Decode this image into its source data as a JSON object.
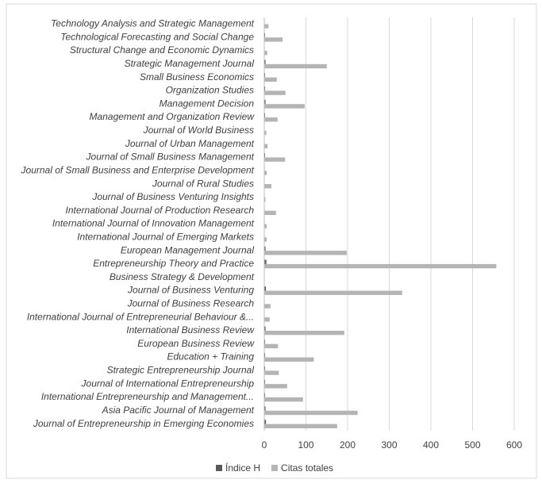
{
  "chart_data": {
    "type": "bar",
    "orientation": "horizontal",
    "categories": [
      "Technology Analysis and Strategic Management",
      "Technological Forecasting and Social Change",
      "Structural Change and Economic Dynamics",
      "Strategic Management Journal",
      "Small Business Economics",
      "Organization Studies",
      "Management Decision",
      "Management and Organization Review",
      "Journal of World Business",
      "Journal of Urban Management",
      "Journal of Small Business Management",
      "Journal of Small Business and Enterprise Development",
      "Journal of Rural Studies",
      "Journal of Business Venturing Insights",
      "International Journal of Production Research",
      "International Journal of Innovation Management",
      "International Journal of Emerging Markets",
      "European Management Journal",
      "Entrepreneurship Theory and Practice",
      "Business Strategy & Development",
      "Journal of Business Venturing",
      "Journal of Business Research",
      "International Journal of Entrepreneurial Behaviour &...",
      "International Business Review",
      "European Business Review",
      "Education + Training",
      "Strategic Entrepreneurship Journal",
      "Journal of International Entrepreneurship",
      "International Entrepreneurship and Management...",
      "Asia Pacific Journal of Management",
      "Journal of Entrepreneurship in Emerging Economies"
    ],
    "series": [
      {
        "name": "Índice H",
        "color": "#595959",
        "values": [
          1,
          2,
          1,
          3,
          2,
          2,
          3,
          2,
          1,
          1,
          2,
          1,
          1,
          1,
          1,
          1,
          1,
          3,
          5,
          1,
          4,
          1,
          1,
          3,
          2,
          2,
          2,
          2,
          2,
          3,
          4
        ]
      },
      {
        "name": "Citas totales",
        "color": "#b4b4b4",
        "values": [
          10,
          44,
          7,
          150,
          30,
          51,
          97,
          32,
          5,
          8,
          50,
          6,
          17,
          3,
          28,
          6,
          6,
          198,
          557,
          1,
          331,
          15,
          13,
          192,
          33,
          119,
          35,
          55,
          93,
          224,
          175
        ]
      }
    ],
    "xlim": [
      0,
      600
    ],
    "xticks": [
      0,
      100,
      200,
      300,
      400,
      500,
      600
    ],
    "grid": true,
    "legend": "bottom"
  }
}
